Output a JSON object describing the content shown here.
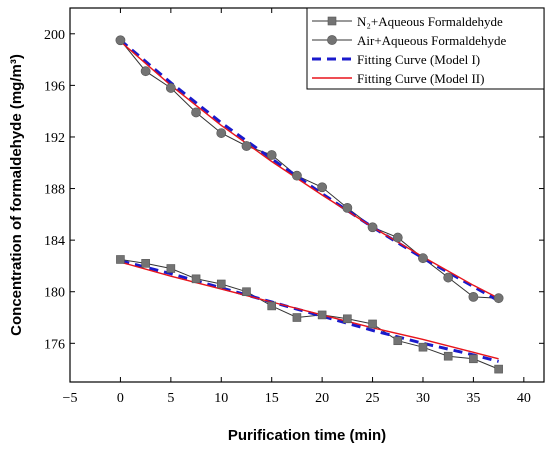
{
  "chart_data": {
    "type": "line",
    "xlabel": "Purification time (min)",
    "ylabel": "Concentration of formaldehyde (mg/m³)",
    "xlim": [
      -5,
      42
    ],
    "ylim": [
      173,
      202
    ],
    "xticks": [
      -5,
      0,
      5,
      10,
      15,
      20,
      25,
      30,
      35,
      40
    ],
    "yticks": [
      176,
      180,
      184,
      188,
      192,
      196,
      200
    ],
    "grid": false,
    "legend_position": "top-right",
    "series": [
      {
        "name": "N₂+Aqueous Formaldehyde",
        "kind": "line+markers",
        "marker": "square",
        "color": "#333333",
        "marker_color": "#737373",
        "x": [
          0,
          2.5,
          5,
          7.5,
          10,
          12.5,
          15,
          17.5,
          20,
          22.5,
          25,
          27.5,
          30,
          32.5,
          35,
          37.5
        ],
        "y": [
          182.5,
          182.2,
          181.8,
          181.0,
          180.6,
          180.0,
          178.9,
          178.0,
          178.2,
          177.9,
          177.5,
          176.2,
          175.7,
          175.0,
          174.8,
          174.0
        ]
      },
      {
        "name": "Air+Aqueous Formaldehyde",
        "kind": "line+markers",
        "marker": "circle",
        "color": "#333333",
        "marker_color": "#737373",
        "x": [
          0,
          2.5,
          5,
          7.5,
          10,
          12.5,
          15,
          17.5,
          20,
          22.5,
          25,
          27.5,
          30,
          32.5,
          35,
          37.5
        ],
        "y": [
          199.5,
          197.1,
          195.8,
          193.9,
          192.3,
          191.3,
          190.6,
          189.0,
          188.1,
          186.5,
          185.0,
          184.2,
          182.6,
          181.1,
          179.6,
          179.5
        ]
      },
      {
        "name": "Fitting Curve (Model I)",
        "kind": "dashed-line",
        "color": "#1a1acc",
        "x": [
          0,
          5,
          10,
          15,
          20,
          25,
          30,
          35,
          37.5
        ],
        "y_upper": [
          199.5,
          196.2,
          193.1,
          190.3,
          187.6,
          185.0,
          182.6,
          180.4,
          179.3
        ],
        "y_lower": [
          182.4,
          181.4,
          180.3,
          179.2,
          178.1,
          177.0,
          176.0,
          175.1,
          174.6
        ]
      },
      {
        "name": "Fitting Curve (Model II)",
        "kind": "line",
        "color": "#e8141b",
        "x": [
          0,
          5,
          10,
          15,
          20,
          25,
          30,
          35,
          37.5
        ],
        "y_upper": [
          199.4,
          196.0,
          192.9,
          190.1,
          187.5,
          185.0,
          182.7,
          180.5,
          179.5
        ],
        "y_lower": [
          182.3,
          181.2,
          180.2,
          179.2,
          178.2,
          177.2,
          176.3,
          175.3,
          174.8
        ]
      }
    ]
  }
}
